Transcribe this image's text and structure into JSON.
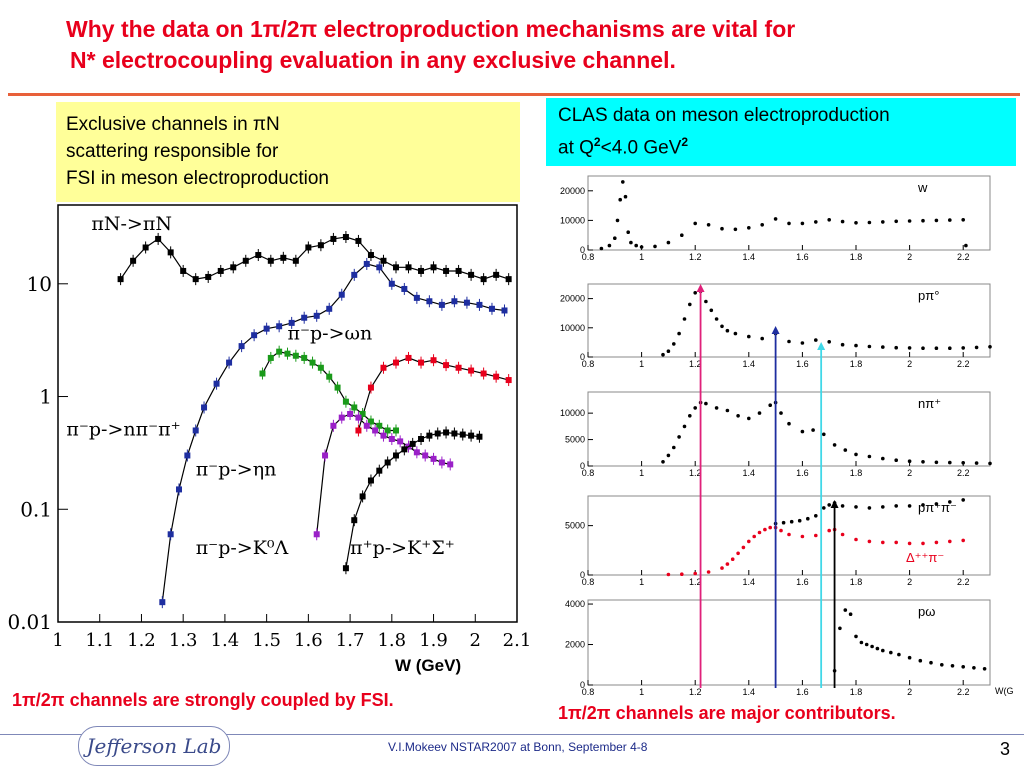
{
  "header": {
    "title_line1": "Why the data on 1π/2π electroproduction mechanisms are vital for",
    "title_line2": "N* electrocoupling evaluation in any exclusive channel."
  },
  "left_box": {
    "line1": "Exclusive channels  in πN",
    "line2": "scattering  responsible for",
    "line3": "FSI in  meson electroproduction"
  },
  "right_box": {
    "line1": "CLAS data on meson electroproduction",
    "line2_a": "at Q",
    "line2_sup1": "2",
    "line2_b": "<4.0 GeV",
    "line2_sup2": "2"
  },
  "captions": {
    "left": "1π/2π channels are strongly coupled by FSI.",
    "right": "1π/2π channels are major contributors."
  },
  "footer": {
    "logo_text": "Jefferson Lab",
    "label": "V.I.Mokeev   NSTAR2007 at Bonn, September  4-8",
    "page_number": "3"
  },
  "colors": {
    "title": "#e8001c",
    "left_box_bg": "#ffff99",
    "right_box_bg": "#00ffff",
    "pink": "#e0207a",
    "navy": "#1e2ea0",
    "cyan": "#40d8e8",
    "black": "#000000"
  },
  "chart_data": [
    {
      "type": "scatter",
      "title": "",
      "xlabel": "W (GeV)",
      "ylabel": "",
      "yscale": "log",
      "xlim": [
        1.0,
        2.1
      ],
      "ylim": [
        0.01,
        50
      ],
      "xticks": [
        1,
        1.1,
        1.2,
        1.3,
        1.4,
        1.5,
        1.6,
        1.7,
        1.8,
        1.9,
        2,
        2.1
      ],
      "xtick_labels": [
        "1",
        "1.1",
        "1.2",
        "1.3",
        "1.4",
        "1.5",
        "1.6",
        "1.7",
        "1.8",
        "1.9",
        "2",
        "2.1"
      ],
      "yticks": [
        0.01,
        0.1,
        1,
        10
      ],
      "ytick_labels": [
        "0.01",
        "0.1",
        "1",
        "10"
      ],
      "series": [
        {
          "name": "πN->πN",
          "color": "#000000",
          "label_pos": [
            1.08,
            30
          ],
          "x": [
            1.15,
            1.18,
            1.21,
            1.24,
            1.27,
            1.3,
            1.33,
            1.36,
            1.39,
            1.42,
            1.45,
            1.48,
            1.51,
            1.54,
            1.57,
            1.6,
            1.63,
            1.66,
            1.69,
            1.72,
            1.75,
            1.78,
            1.81,
            1.84,
            1.87,
            1.9,
            1.93,
            1.96,
            1.99,
            2.02,
            2.05,
            2.08
          ],
          "y": [
            11,
            16,
            21,
            25,
            19,
            13,
            11,
            11.5,
            13,
            14,
            16,
            18,
            16,
            17,
            16,
            21,
            22,
            25,
            26,
            24,
            18,
            16,
            14,
            14,
            13,
            14,
            13,
            13,
            12,
            11,
            12,
            11
          ]
        },
        {
          "name": "π⁻p->nπ⁻π⁺",
          "color": "#1e2ea0",
          "label_pos": [
            1.02,
            0.45
          ],
          "x": [
            1.25,
            1.27,
            1.29,
            1.31,
            1.33,
            1.35,
            1.38,
            1.41,
            1.44,
            1.47,
            1.5,
            1.53,
            1.56,
            1.59,
            1.62,
            1.65,
            1.68,
            1.71,
            1.74,
            1.77,
            1.8,
            1.83,
            1.86,
            1.89,
            1.92,
            1.95,
            1.98,
            2.01,
            2.04,
            2.07
          ],
          "y": [
            0.015,
            0.06,
            0.15,
            0.3,
            0.5,
            0.8,
            1.3,
            2,
            2.8,
            3.5,
            4,
            4.2,
            4.5,
            5,
            5.2,
            6,
            8,
            12,
            15,
            14,
            10,
            9,
            7.5,
            7,
            6.5,
            7,
            6.8,
            6.5,
            6,
            5.8
          ]
        },
        {
          "name": "π⁻p->ωn",
          "color": "#e8001c",
          "label_pos": [
            1.55,
            3.2
          ],
          "x": [
            1.72,
            1.75,
            1.78,
            1.81,
            1.84,
            1.87,
            1.9,
            1.93,
            1.96,
            1.99,
            2.02,
            2.05,
            2.08
          ],
          "y": [
            0.5,
            1.2,
            1.8,
            2.0,
            2.2,
            2.0,
            2.1,
            1.9,
            1.8,
            1.7,
            1.6,
            1.5,
            1.4
          ]
        },
        {
          "name": "π⁻p->ηn",
          "color": "#1a9a1a",
          "label_pos": [
            1.33,
            0.2
          ],
          "x": [
            1.49,
            1.51,
            1.53,
            1.55,
            1.57,
            1.59,
            1.61,
            1.63,
            1.65,
            1.67,
            1.69,
            1.71,
            1.73,
            1.75,
            1.77,
            1.79,
            1.81
          ],
          "y": [
            1.6,
            2.2,
            2.5,
            2.4,
            2.3,
            2.2,
            2.0,
            1.8,
            1.5,
            1.2,
            0.9,
            0.8,
            0.7,
            0.6,
            0.55,
            0.5,
            0.5
          ]
        },
        {
          "name": "π⁻p->K⁰Λ",
          "color": "#9a20c8",
          "label_pos": [
            1.33,
            0.04
          ],
          "x": [
            1.62,
            1.64,
            1.66,
            1.68,
            1.7,
            1.72,
            1.74,
            1.76,
            1.78,
            1.8,
            1.82,
            1.84,
            1.86,
            1.88,
            1.9,
            1.92,
            1.94
          ],
          "y": [
            0.06,
            0.3,
            0.55,
            0.65,
            0.7,
            0.65,
            0.55,
            0.5,
            0.45,
            0.42,
            0.4,
            0.36,
            0.32,
            0.3,
            0.28,
            0.26,
            0.25
          ]
        },
        {
          "name": "π⁺p->K⁺Σ⁺",
          "color": "#000000",
          "label_pos": [
            1.7,
            0.04
          ],
          "x": [
            1.69,
            1.71,
            1.73,
            1.75,
            1.77,
            1.79,
            1.81,
            1.83,
            1.85,
            1.87,
            1.89,
            1.91,
            1.93,
            1.95,
            1.97,
            1.99,
            2.01
          ],
          "y": [
            0.03,
            0.08,
            0.13,
            0.18,
            0.22,
            0.26,
            0.3,
            0.34,
            0.38,
            0.42,
            0.45,
            0.47,
            0.48,
            0.47,
            0.46,
            0.45,
            0.44
          ]
        }
      ]
    },
    {
      "type": "scatter",
      "name": "W",
      "label": "w",
      "xlim": [
        0.8,
        2.3
      ],
      "ylim": [
        0,
        25000
      ],
      "yticks": [
        0,
        10000,
        20000
      ],
      "ytick_labels": [
        "0",
        "10000",
        "20000"
      ],
      "xticks": [
        0.8,
        1,
        1.2,
        1.4,
        1.6,
        1.8,
        2,
        2.2
      ],
      "xtick_labels": [
        "0.8",
        "1",
        "1.2",
        "1.4",
        "1.6",
        "1.8",
        "2",
        "2.2"
      ],
      "x": [
        0.85,
        0.88,
        0.9,
        0.91,
        0.92,
        0.93,
        0.94,
        0.95,
        0.96,
        0.98,
        1.0,
        1.05,
        1.1,
        1.15,
        1.2,
        1.25,
        1.3,
        1.35,
        1.4,
        1.45,
        1.5,
        1.55,
        1.6,
        1.65,
        1.7,
        1.75,
        1.8,
        1.85,
        1.9,
        1.95,
        2.0,
        2.05,
        2.1,
        2.15,
        2.2,
        2.21
      ],
      "y": [
        500,
        1500,
        4000,
        10000,
        17000,
        23000,
        18000,
        6000,
        2500,
        1500,
        1000,
        1200,
        2500,
        5000,
        9000,
        8500,
        7200,
        7000,
        7500,
        8500,
        10500,
        9000,
        9000,
        9500,
        10200,
        9600,
        9200,
        9300,
        9500,
        9700,
        9800,
        9900,
        10000,
        10100,
        10200,
        1500
      ]
    },
    {
      "type": "scatter",
      "name": "pπ°",
      "label": "pπ°",
      "xlim": [
        0.8,
        2.3
      ],
      "ylim": [
        0,
        25000
      ],
      "yticks": [
        0,
        10000,
        20000
      ],
      "ytick_labels": [
        "0",
        "10000",
        "20000"
      ],
      "xticks": [
        0.8,
        1,
        1.2,
        1.4,
        1.6,
        1.8,
        2,
        2.2
      ],
      "xtick_labels": [
        "0.8",
        "1",
        "1.2",
        "1.4",
        "1.6",
        "1.8",
        "2",
        "2.2"
      ],
      "x": [
        1.08,
        1.1,
        1.12,
        1.14,
        1.16,
        1.18,
        1.2,
        1.22,
        1.24,
        1.26,
        1.28,
        1.3,
        1.32,
        1.35,
        1.4,
        1.45,
        1.5,
        1.55,
        1.6,
        1.65,
        1.7,
        1.75,
        1.8,
        1.85,
        1.9,
        1.95,
        2.0,
        2.05,
        2.1,
        2.15,
        2.2,
        2.25,
        2.3
      ],
      "y": [
        800,
        2000,
        4500,
        8000,
        13000,
        18000,
        22000,
        22500,
        19000,
        16000,
        13000,
        10500,
        9000,
        8000,
        7000,
        6300,
        8000,
        5300,
        4800,
        5800,
        5200,
        4200,
        3900,
        3600,
        3400,
        3200,
        3100,
        3000,
        3000,
        3000,
        3100,
        3300,
        3500
      ]
    },
    {
      "type": "scatter",
      "name": "nπ⁺",
      "label": "nπ⁺",
      "xlim": [
        0.8,
        2.3
      ],
      "ylim": [
        0,
        14000
      ],
      "yticks": [
        0,
        5000,
        10000
      ],
      "ytick_labels": [
        "0",
        "5000",
        "10000"
      ],
      "xticks": [
        0.8,
        1,
        1.2,
        1.4,
        1.6,
        1.8,
        2,
        2.2
      ],
      "xtick_labels": [
        "0.8",
        "1",
        "1.2",
        "1.4",
        "1.6",
        "1.8",
        "2",
        "2.2"
      ],
      "x": [
        1.08,
        1.1,
        1.12,
        1.14,
        1.16,
        1.18,
        1.2,
        1.22,
        1.24,
        1.28,
        1.32,
        1.36,
        1.4,
        1.44,
        1.48,
        1.5,
        1.52,
        1.55,
        1.6,
        1.64,
        1.68,
        1.72,
        1.76,
        1.8,
        1.85,
        1.9,
        1.95,
        2.0,
        2.05,
        2.1,
        2.15,
        2.2,
        2.25,
        2.3
      ],
      "y": [
        800,
        2000,
        3500,
        5500,
        7500,
        9500,
        11000,
        12000,
        11800,
        11000,
        10500,
        9500,
        9000,
        10000,
        11500,
        12000,
        10000,
        8000,
        6500,
        6800,
        6000,
        4000,
        3000,
        2200,
        1800,
        1400,
        1100,
        900,
        800,
        700,
        650,
        600,
        550,
        500
      ]
    },
    {
      "type": "scatter",
      "name": "pπ⁺π⁻",
      "label": "pπ⁺π⁻",
      "xlim": [
        0.8,
        2.3
      ],
      "ylim": [
        0,
        8000
      ],
      "yticks": [
        0,
        5000
      ],
      "ytick_labels": [
        "0",
        "5000"
      ],
      "xticks": [
        0.8,
        1,
        1.2,
        1.4,
        1.6,
        1.8,
        2,
        2.2
      ],
      "xtick_labels": [
        "0.8",
        "1",
        "1.2",
        "1.4",
        "1.6",
        "1.8",
        "2",
        "2.2"
      ],
      "series": [
        {
          "name": "pπ⁺π⁻",
          "color": "#000000",
          "x": [
            1.5,
            1.53,
            1.56,
            1.59,
            1.62,
            1.65,
            1.68,
            1.7,
            1.72,
            1.75,
            1.8,
            1.85,
            1.9,
            1.95,
            2.0,
            2.05,
            2.1,
            2.15,
            2.2
          ],
          "y": [
            5200,
            5300,
            5400,
            5500,
            5700,
            6000,
            6800,
            7100,
            7300,
            7000,
            6900,
            6800,
            6900,
            7000,
            7000,
            7100,
            7200,
            7400,
            7600
          ]
        },
        {
          "name": "Δ⁺⁺π⁻",
          "color": "#e8001c",
          "x": [
            1.1,
            1.15,
            1.2,
            1.25,
            1.3,
            1.32,
            1.34,
            1.36,
            1.38,
            1.4,
            1.42,
            1.44,
            1.46,
            1.48,
            1.5,
            1.52,
            1.55,
            1.6,
            1.65,
            1.7,
            1.72,
            1.75,
            1.8,
            1.85,
            1.9,
            1.95,
            2.0,
            2.05,
            2.1,
            2.15,
            2.2
          ],
          "y": [
            50,
            80,
            150,
            300,
            700,
            1100,
            1600,
            2200,
            2800,
            3400,
            3900,
            4300,
            4600,
            4800,
            4800,
            4500,
            4100,
            3900,
            4000,
            4500,
            4600,
            4100,
            3600,
            3400,
            3300,
            3300,
            3200,
            3200,
            3300,
            3400,
            3500
          ]
        }
      ]
    },
    {
      "type": "scatter",
      "name": "pω",
      "label": "pω",
      "xlim": [
        0.8,
        2.3
      ],
      "ylim": [
        0,
        4200
      ],
      "yticks": [
        0,
        2000,
        4000
      ],
      "ytick_labels": [
        "0",
        "2000",
        "4000"
      ],
      "xticks": [
        0.8,
        1,
        1.2,
        1.4,
        1.6,
        1.8,
        2,
        2.2
      ],
      "xtick_labels": [
        "0.8",
        "1",
        "1.2",
        "1.4",
        "1.6",
        "1.8",
        "2",
        "2.2"
      ],
      "xlabel": "W(G",
      "x": [
        1.72,
        1.74,
        1.76,
        1.78,
        1.8,
        1.82,
        1.84,
        1.86,
        1.88,
        1.9,
        1.93,
        1.96,
        2.0,
        2.04,
        2.08,
        2.12,
        2.16,
        2.2,
        2.24,
        2.28
      ],
      "y": [
        700,
        2800,
        3700,
        3500,
        2400,
        2100,
        2000,
        1900,
        1800,
        1700,
        1600,
        1500,
        1350,
        1200,
        1100,
        1000,
        950,
        900,
        850,
        800
      ]
    }
  ],
  "markers": {
    "pink_x": 1.22,
    "navy_x": 1.5,
    "cyan_x": 1.67,
    "black_x": 1.72
  }
}
